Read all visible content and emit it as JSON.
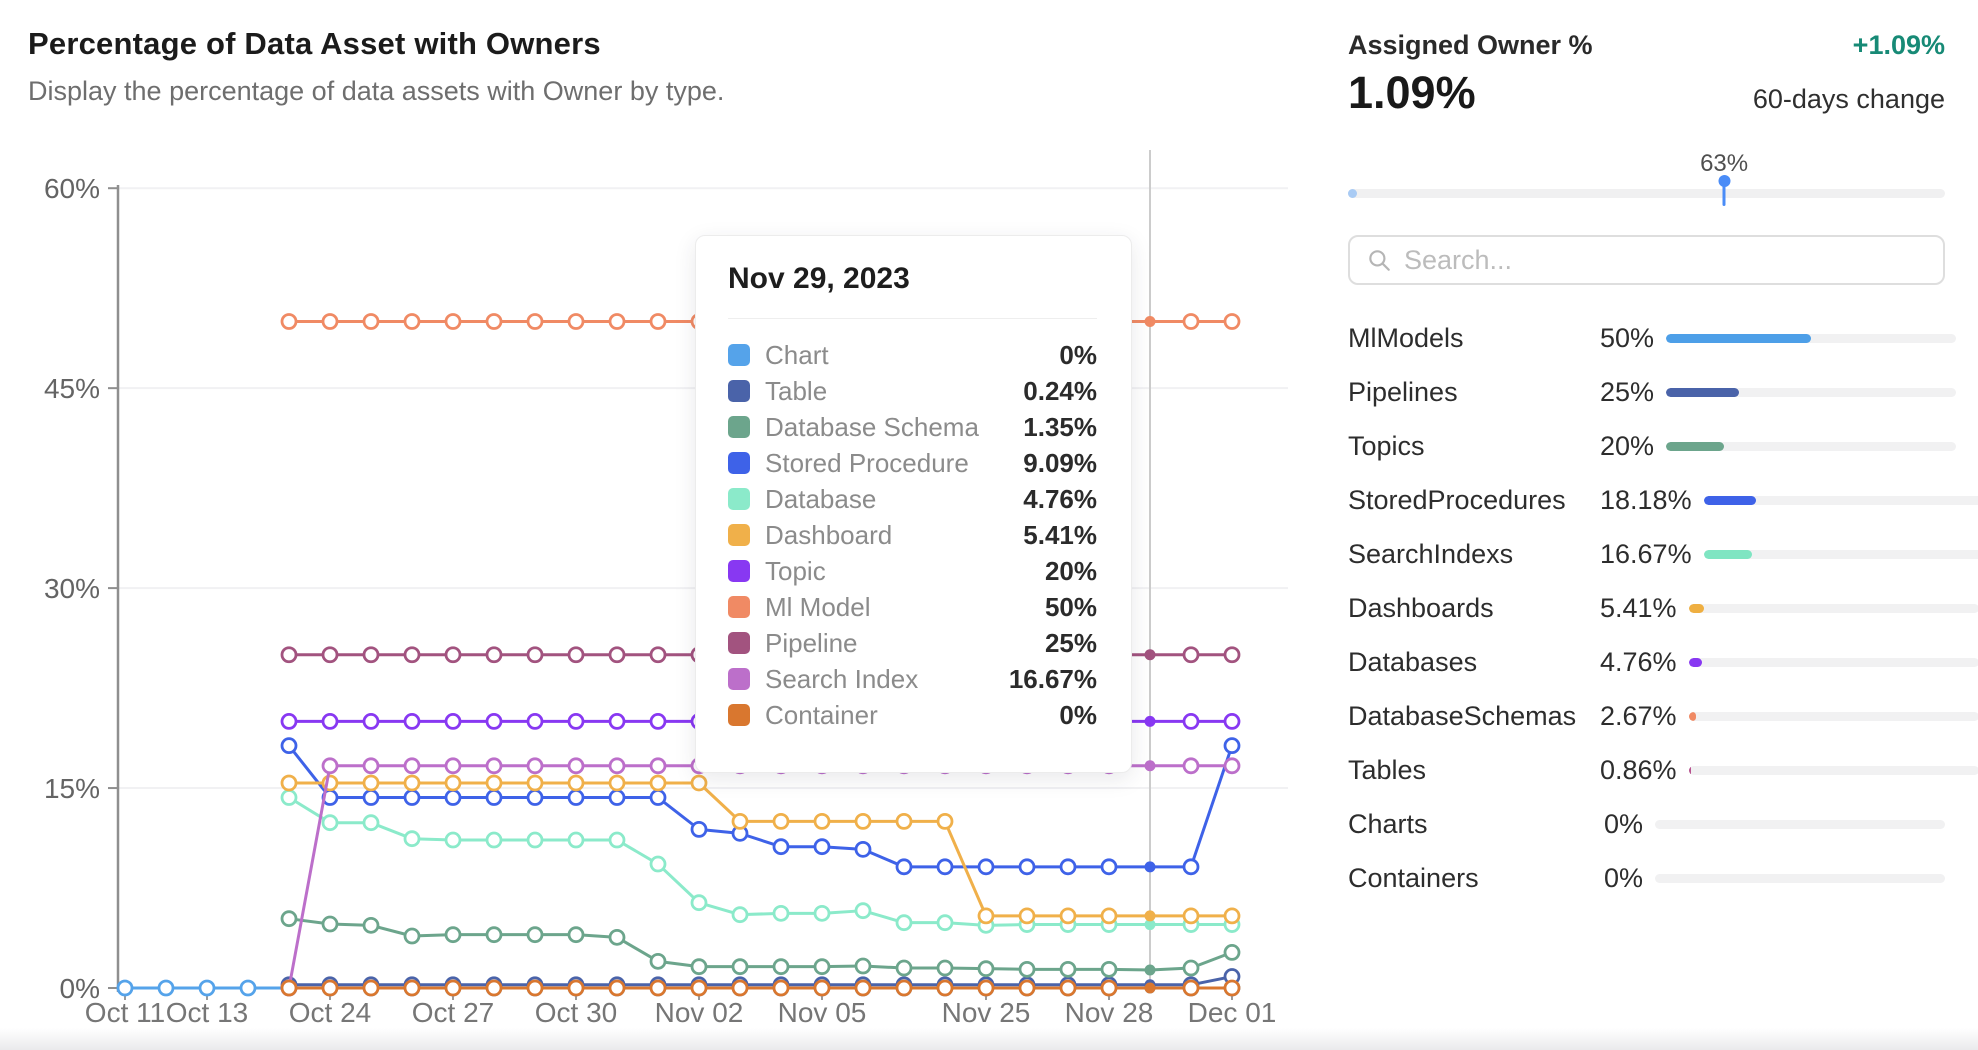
{
  "header": {
    "title": "Percentage of Data Asset with Owners",
    "subtitle": "Display the percentage of data assets with Owner by type."
  },
  "tooltip": {
    "date": "Nov 29, 2023",
    "rows": [
      {
        "label": "Chart",
        "value": "0%",
        "color": "#55a3ea"
      },
      {
        "label": "Table",
        "value": "0.24%",
        "color": "#4a63a9"
      },
      {
        "label": "Database Schema",
        "value": "1.35%",
        "color": "#6ca58c"
      },
      {
        "label": "Stored Procedure",
        "value": "9.09%",
        "color": "#3e62e8"
      },
      {
        "label": "Database",
        "value": "4.76%",
        "color": "#8beaca"
      },
      {
        "label": "Dashboard",
        "value": "5.41%",
        "color": "#f0b04a"
      },
      {
        "label": "Topic",
        "value": "20%",
        "color": "#8838f2"
      },
      {
        "label": "Ml Model",
        "value": "50%",
        "color": "#f08a64"
      },
      {
        "label": "Pipeline",
        "value": "25%",
        "color": "#a2537f"
      },
      {
        "label": "Search Index",
        "value": "16.67%",
        "color": "#bc6fca"
      },
      {
        "label": "Container",
        "value": "0%",
        "color": "#d9772f"
      }
    ]
  },
  "panel": {
    "title": "Assigned Owner %",
    "value": "1.09%",
    "change": "+1.09%",
    "change_label": "60-days change",
    "change_color": "#178a76",
    "slider": {
      "marker_label": "63%",
      "marker_pct": 63,
      "fill_pct": 1.09
    },
    "search": {
      "placeholder": "Search..."
    },
    "rows": [
      {
        "label": "MlModels",
        "value": "50%",
        "pct": 50,
        "color": "#4d9fe8"
      },
      {
        "label": "Pipelines",
        "value": "25%",
        "pct": 25,
        "color": "#4a63a9"
      },
      {
        "label": "Topics",
        "value": "20%",
        "pct": 20,
        "color": "#6ca58c"
      },
      {
        "label": "StoredProcedures",
        "value": "18.18%",
        "pct": 18.18,
        "color": "#3e62e8"
      },
      {
        "label": "SearchIndexs",
        "value": "16.67%",
        "pct": 16.67,
        "color": "#7fe5c2"
      },
      {
        "label": "Dashboards",
        "value": "5.41%",
        "pct": 5.41,
        "color": "#efaf41"
      },
      {
        "label": "Databases",
        "value": "4.76%",
        "pct": 4.76,
        "color": "#8838f2"
      },
      {
        "label": "DatabaseSchemas",
        "value": "2.67%",
        "pct": 2.67,
        "color": "#f08a64"
      },
      {
        "label": "Tables",
        "value": "0.86%",
        "pct": 0.86,
        "color": "#b85490"
      },
      {
        "label": "Charts",
        "value": "0%",
        "pct": 0,
        "color": "#bc6fca"
      },
      {
        "label": "Containers",
        "value": "0%",
        "pct": 0,
        "color": "#d9772f"
      }
    ]
  },
  "chart_data": {
    "type": "line",
    "title": "Percentage of Data Asset with Owners",
    "xlabel": "",
    "ylabel": "",
    "ylim": [
      0,
      60
    ],
    "yticks": [
      {
        "value": 0,
        "label": "0%"
      },
      {
        "value": 15,
        "label": "15%"
      },
      {
        "value": 30,
        "label": "30%"
      },
      {
        "value": 45,
        "label": "45%"
      },
      {
        "value": 60,
        "label": "60%"
      }
    ],
    "grid": "horizontal",
    "legend_position": "tooltip-only",
    "marker_style": "open-circle",
    "hover_index": 25,
    "hover_date": "Nov 29, 2023",
    "label_indices": [
      0,
      2,
      5,
      8,
      11,
      14,
      17,
      21,
      24,
      27
    ],
    "x": [
      "Oct 11",
      "Oct 12",
      "Oct 13",
      "Oct 22",
      "Oct 23",
      "Oct 24",
      "Oct 25",
      "Oct 26",
      "Oct 27",
      "Oct 28",
      "Oct 29",
      "Oct 30",
      "Oct 31",
      "Nov 01",
      "Nov 02",
      "Nov 03",
      "Nov 04",
      "Nov 05",
      "Nov 22",
      "Nov 23",
      "Nov 24",
      "Nov 25",
      "Nov 26",
      "Nov 27",
      "Nov 28",
      "Nov 29",
      "Nov 30",
      "Dec 01"
    ],
    "series": [
      {
        "name": "Chart",
        "color": "#55a3ea",
        "values": [
          0,
          0,
          0,
          0,
          0,
          0,
          0,
          0,
          0,
          0,
          0,
          0,
          0,
          0,
          0,
          0,
          0,
          0,
          0,
          0,
          0,
          0,
          0,
          0,
          0,
          0,
          0,
          0
        ]
      },
      {
        "name": "Table",
        "color": "#4a63a9",
        "values": [
          null,
          null,
          null,
          null,
          0.24,
          0.24,
          0.24,
          0.24,
          0.24,
          0.24,
          0.24,
          0.24,
          0.24,
          0.24,
          0.24,
          0.24,
          0.24,
          0.24,
          0.24,
          0.24,
          0.24,
          0.24,
          0.24,
          0.24,
          0.24,
          0.24,
          0.24,
          0.86
        ]
      },
      {
        "name": "Database Schema",
        "color": "#6ca58c",
        "values": [
          null,
          null,
          null,
          null,
          5.2,
          4.8,
          4.7,
          3.9,
          4,
          4,
          4,
          4,
          3.8,
          2,
          1.6,
          1.6,
          1.6,
          1.6,
          1.65,
          1.5,
          1.5,
          1.45,
          1.4,
          1.4,
          1.4,
          1.35,
          1.5,
          2.67
        ]
      },
      {
        "name": "Stored Procedure",
        "color": "#3e62e8",
        "values": [
          null,
          null,
          null,
          null,
          18.18,
          14.29,
          14.29,
          14.29,
          14.29,
          14.29,
          14.29,
          14.29,
          14.29,
          14.29,
          11.9,
          11.6,
          10.6,
          10.6,
          10.4,
          9.09,
          9.09,
          9.09,
          9.09,
          9.09,
          9.09,
          9.09,
          9.09,
          18.18
        ]
      },
      {
        "name": "Database",
        "color": "#8beaca",
        "values": [
          null,
          null,
          null,
          null,
          14.29,
          12.4,
          12.4,
          11.2,
          11.1,
          11.1,
          11.1,
          11.1,
          11.1,
          9.3,
          6.4,
          5.5,
          5.6,
          5.6,
          5.8,
          4.9,
          4.9,
          4.7,
          4.76,
          4.76,
          4.76,
          4.76,
          4.76,
          4.76
        ]
      },
      {
        "name": "Dashboard",
        "color": "#f0b04a",
        "values": [
          null,
          null,
          null,
          null,
          15.38,
          15.38,
          15.38,
          15.38,
          15.38,
          15.38,
          15.38,
          15.38,
          15.38,
          15.38,
          15.38,
          12.5,
          12.5,
          12.5,
          12.5,
          12.5,
          12.5,
          5.41,
          5.41,
          5.41,
          5.41,
          5.41,
          5.41,
          5.41
        ]
      },
      {
        "name": "Topic",
        "color": "#8838f2",
        "values": [
          null,
          null,
          null,
          null,
          20,
          20,
          20,
          20,
          20,
          20,
          20,
          20,
          20,
          20,
          20,
          20,
          20,
          20,
          20,
          20,
          20,
          20,
          20,
          20,
          20,
          20,
          20,
          20
        ]
      },
      {
        "name": "Ml Model",
        "color": "#f08a64",
        "values": [
          null,
          null,
          null,
          null,
          50,
          50,
          50,
          50,
          50,
          50,
          50,
          50,
          50,
          50,
          50,
          50,
          50,
          50,
          50,
          50,
          50,
          50,
          50,
          50,
          50,
          50,
          50,
          50
        ]
      },
      {
        "name": "Pipeline",
        "color": "#a2537f",
        "values": [
          null,
          null,
          null,
          null,
          25,
          25,
          25,
          25,
          25,
          25,
          25,
          25,
          25,
          25,
          25,
          25,
          25,
          25,
          25,
          25,
          25,
          25,
          25,
          25,
          25,
          25,
          25,
          25
        ]
      },
      {
        "name": "Search Index",
        "color": "#bc6fca",
        "values": [
          null,
          null,
          null,
          null,
          0,
          16.67,
          16.67,
          16.67,
          16.67,
          16.67,
          16.67,
          16.67,
          16.67,
          16.67,
          16.67,
          16.67,
          16.67,
          16.67,
          16.67,
          16.67,
          16.67,
          16.67,
          16.67,
          16.67,
          16.67,
          16.67,
          16.67,
          16.67
        ]
      },
      {
        "name": "Container",
        "color": "#d9772f",
        "values": [
          null,
          null,
          null,
          null,
          0,
          0,
          0,
          0,
          0,
          0,
          0,
          0,
          0,
          0,
          0,
          0,
          0,
          0,
          0,
          0,
          0,
          0,
          0,
          0,
          0,
          0,
          0,
          0
        ]
      }
    ]
  }
}
